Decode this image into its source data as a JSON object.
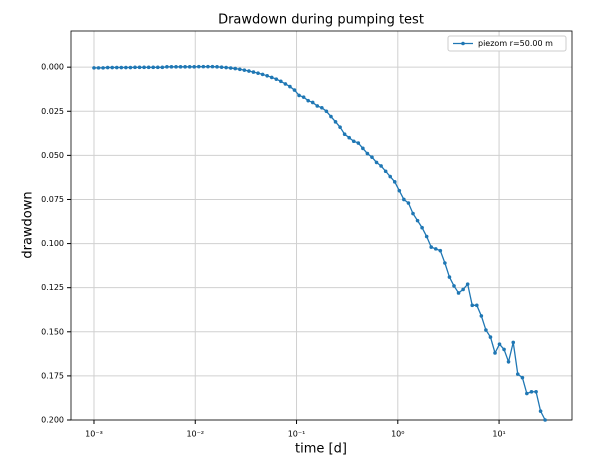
{
  "chart_data": {
    "type": "line",
    "title": "Drawdown during pumping test",
    "x_label": "time [d]",
    "y_label": "drawdown",
    "x_scale": "log",
    "grid": true,
    "legend": "upper right",
    "xlim": [
      0.000593,
      52.5
    ],
    "ylim": [
      0.2,
      -0.0205
    ],
    "xticks": [
      {
        "value": 0.001,
        "label": "10⁻³"
      },
      {
        "value": 0.01,
        "label": "10⁻²"
      },
      {
        "value": 0.1,
        "label": "10⁻¹"
      },
      {
        "value": 1,
        "label": "10⁰"
      },
      {
        "value": 10,
        "label": "10¹"
      }
    ],
    "yticks": [
      {
        "value": 0,
        "label": "0.000"
      },
      {
        "value": 0.025,
        "label": "0.025"
      },
      {
        "value": 0.05,
        "label": "0.050"
      },
      {
        "value": 0.075,
        "label": "0.075"
      },
      {
        "value": 0.1,
        "label": "0.100"
      },
      {
        "value": 0.125,
        "label": "0.125"
      },
      {
        "value": 0.15,
        "label": "0.150"
      },
      {
        "value": 0.175,
        "label": "0.175"
      },
      {
        "value": 0.2,
        "label": "0.200"
      }
    ],
    "x": [
      0.001,
      0.001109,
      0.00123,
      0.001365,
      0.001514,
      0.001679,
      0.001862,
      0.002065,
      0.002291,
      0.002541,
      0.002818,
      0.003126,
      0.003467,
      0.003846,
      0.004266,
      0.004732,
      0.005248,
      0.005821,
      0.006457,
      0.007161,
      0.007943,
      0.00881,
      0.009772,
      0.01084,
      0.01202,
      0.01334,
      0.01479,
      0.01641,
      0.0182,
      0.02018,
      0.02239,
      0.02483,
      0.02754,
      0.03055,
      0.03388,
      0.03758,
      0.04169,
      0.04624,
      0.05129,
      0.05689,
      0.0631,
      0.06998,
      0.07762,
      0.0861,
      0.0955,
      0.1059,
      0.1175,
      0.1303,
      0.1445,
      0.1603,
      0.1778,
      0.1972,
      0.2188,
      0.2427,
      0.2692,
      0.2985,
      0.3311,
      0.3673,
      0.4074,
      0.4519,
      0.5012,
      0.5559,
      0.6166,
      0.6839,
      0.7586,
      0.8414,
      0.9333,
      1.035,
      1.148,
      1.274,
      1.413,
      1.567,
      1.738,
      1.928,
      2.138,
      2.371,
      2.63,
      2.917,
      3.236,
      3.589,
      3.981,
      4.416,
      4.898,
      5.433,
      6.026,
      6.683,
      7.413,
      8.222,
      9.12,
      10.1,
      11.2,
      12.4,
      13.8,
      15.3,
      17.0,
      18.8,
      20.9,
      23.2,
      25.7,
      28.5
    ],
    "series": [
      {
        "name": "piezom r=50.00 m",
        "color": "#1f77b4",
        "values": [
          0.0004,
          0.0004,
          0.0004,
          0.0002,
          0.0002,
          0.0002,
          0.0002,
          0.0002,
          0.0002,
          0.0001,
          0.0001,
          0.0001,
          0.0001,
          0.0001,
          0.0001,
          0.0001,
          -0.0002,
          -0.0002,
          -0.0002,
          -0.0002,
          -0.0002,
          -0.0002,
          -0.0002,
          -0.0003,
          -0.0003,
          -0.0003,
          -0.0003,
          -0.0002,
          0,
          0.0002,
          0.0005,
          0.0008,
          0.0012,
          0.0017,
          0.0022,
          0.0028,
          0.0034,
          0.0041,
          0.0049,
          0.0058,
          0.0068,
          0.008,
          0.0095,
          0.011,
          0.013,
          0.016,
          0.017,
          0.019,
          0.02,
          0.022,
          0.023,
          0.025,
          0.028,
          0.031,
          0.034,
          0.038,
          0.04,
          0.042,
          0.043,
          0.046,
          0.049,
          0.051,
          0.054,
          0.056,
          0.059,
          0.062,
          0.065,
          0.07,
          0.075,
          0.077,
          0.083,
          0.087,
          0.091,
          0.096,
          0.102,
          0.103,
          0.104,
          0.111,
          0.119,
          0.124,
          0.128,
          0.126,
          0.123,
          0.135,
          0.135,
          0.141,
          0.149,
          0.153,
          0.162,
          0.157,
          0.16,
          0.167,
          0.156,
          0.174,
          0.176,
          0.185,
          0.184,
          0.184,
          0.195,
          0.2
        ]
      }
    ]
  }
}
